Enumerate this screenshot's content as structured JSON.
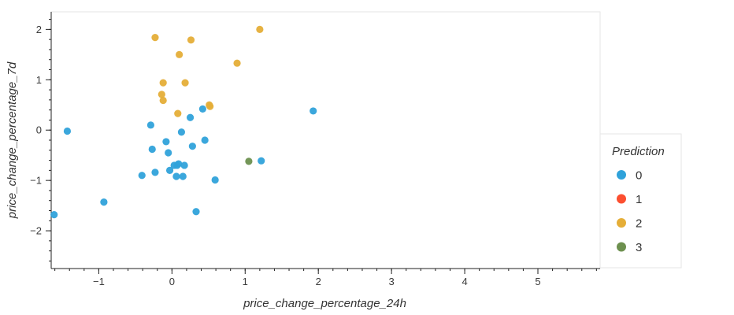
{
  "chart_data": {
    "type": "scatter",
    "xlabel": "price_change_percentage_24h",
    "ylabel": "price_change_percentage_7d",
    "xlim": [
      -1.65,
      5.85
    ],
    "ylim": [
      -2.75,
      2.35
    ],
    "xticks": [
      -1,
      0,
      1,
      2,
      3,
      4,
      5
    ],
    "xtick_labels": [
      "−1",
      "0",
      "1",
      "2",
      "3",
      "4",
      "5"
    ],
    "yticks": [
      -2,
      -1,
      0,
      1,
      2
    ],
    "ytick_labels": [
      "−2",
      "−1",
      "0",
      "1",
      "2"
    ],
    "grid": false,
    "legend": {
      "title": "Prediction",
      "placement": "right-bottom",
      "entries": [
        {
          "label": "0",
          "color": "#30a2da"
        },
        {
          "label": "1",
          "color": "#fc4f30"
        },
        {
          "label": "2",
          "color": "#e5ae38"
        },
        {
          "label": "3",
          "color": "#6d904f"
        }
      ]
    },
    "series": [
      {
        "name": "0",
        "color": "#30a2da",
        "points": [
          [
            -1.61,
            -1.68
          ],
          [
            -1.43,
            -0.02
          ],
          [
            -0.93,
            -1.43
          ],
          [
            -0.41,
            -0.9
          ],
          [
            -0.29,
            0.1
          ],
          [
            -0.27,
            -0.38
          ],
          [
            -0.23,
            -0.84
          ],
          [
            -0.08,
            -0.23
          ],
          [
            -0.05,
            -0.45
          ],
          [
            -0.03,
            -0.8
          ],
          [
            0.03,
            -0.7
          ],
          [
            0.06,
            -0.92
          ],
          [
            0.07,
            -0.7
          ],
          [
            0.09,
            -0.67
          ],
          [
            0.13,
            -0.04
          ],
          [
            0.15,
            -0.92
          ],
          [
            0.17,
            -0.7
          ],
          [
            0.25,
            0.25
          ],
          [
            0.28,
            -0.32
          ],
          [
            0.33,
            -1.62
          ],
          [
            0.42,
            0.42
          ],
          [
            0.45,
            -0.2
          ],
          [
            0.59,
            -0.99
          ],
          [
            1.22,
            -0.61
          ],
          [
            1.93,
            0.38
          ]
        ]
      },
      {
        "name": "1",
        "color": "#fc4f30",
        "points": []
      },
      {
        "name": "2",
        "color": "#e5ae38",
        "points": [
          [
            -0.23,
            1.84
          ],
          [
            -0.14,
            0.71
          ],
          [
            -0.12,
            0.94
          ],
          [
            -0.12,
            0.59
          ],
          [
            0.08,
            0.33
          ],
          [
            0.1,
            1.5
          ],
          [
            0.18,
            0.94
          ],
          [
            0.26,
            1.79
          ],
          [
            0.51,
            0.5
          ],
          [
            0.52,
            0.47
          ],
          [
            0.89,
            1.33
          ],
          [
            1.2,
            2.0
          ]
        ]
      },
      {
        "name": "3",
        "color": "#6d904f",
        "points": [
          [
            1.05,
            -0.62
          ]
        ]
      }
    ]
  }
}
